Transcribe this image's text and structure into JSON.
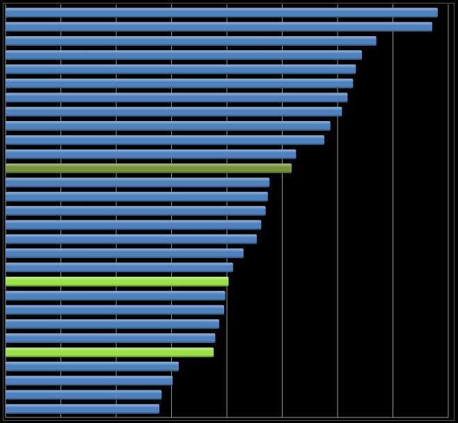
{
  "chart_data": {
    "type": "barh",
    "values": [
      7.81,
      7.71,
      6.7,
      6.44,
      6.33,
      6.28,
      6.18,
      6.08,
      5.87,
      5.76,
      5.25,
      5.17,
      4.77,
      4.74,
      4.7,
      4.62,
      4.54,
      4.3,
      4.11,
      4.03,
      3.97,
      3.95,
      3.86,
      3.79,
      3.76,
      3.13,
      3.02,
      2.82,
      2.78
    ],
    "colors": [
      "#4f81bd",
      "#4f81bd",
      "#4f81bd",
      "#4f81bd",
      "#4f81bd",
      "#4f81bd",
      "#4f81bd",
      "#4f81bd",
      "#4f81bd",
      "#4f81bd",
      "#4f81bd",
      "#77933c",
      "#4f81bd",
      "#4f81bd",
      "#4f81bd",
      "#4f81bd",
      "#4f81bd",
      "#4f81bd",
      "#4f81bd",
      "#9bdf4a",
      "#4f81bd",
      "#4f81bd",
      "#4f81bd",
      "#4f81bd",
      "#9bdf4a",
      "#4f81bd",
      "#4f81bd",
      "#4f81bd",
      "#4f81bd"
    ],
    "xlim": [
      0,
      8
    ],
    "xticks": [
      0,
      1,
      2,
      3,
      4,
      5,
      6,
      7,
      8
    ],
    "grid": true
  }
}
